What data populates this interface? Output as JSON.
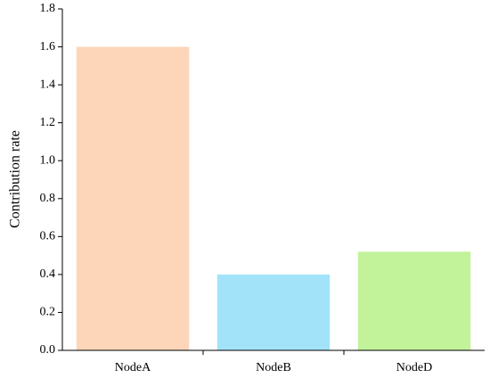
{
  "chart_data": {
    "type": "bar",
    "y_label": "Contribution rate",
    "categories": [
      "NodeA",
      "NodeB",
      "NodeD"
    ],
    "values": [
      1.6,
      0.4,
      0.52
    ],
    "colors": [
      "#fdd5b8",
      "#a3e3fa",
      "#c2f29a"
    ],
    "ylim": [
      0,
      1.8
    ],
    "yticks": [
      {
        "value": 0,
        "label": "0.0"
      },
      0.2,
      0.4,
      0.6,
      0.8,
      {
        "value": 1,
        "label": "1.0"
      },
      1.2,
      1.4,
      1.6,
      1.8
    ],
    "grid": false
  }
}
